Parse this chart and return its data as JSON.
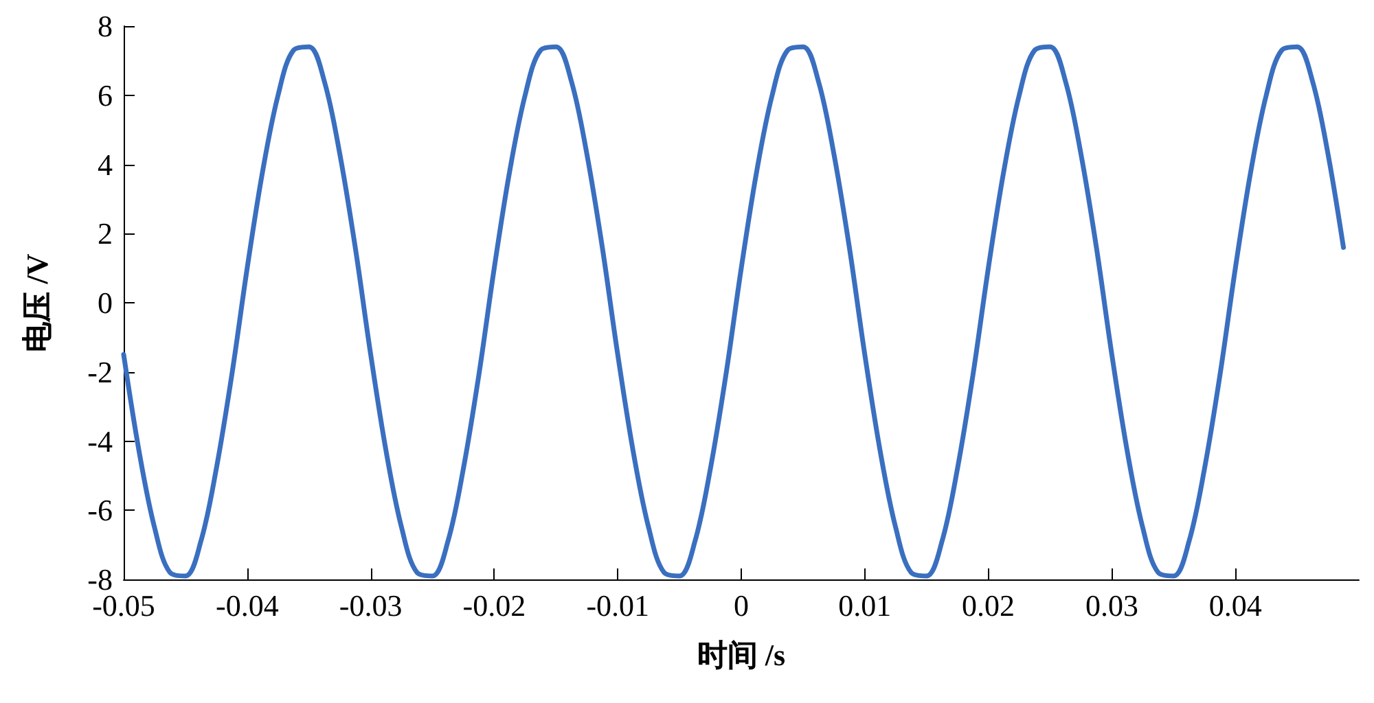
{
  "chart_data": {
    "type": "line",
    "xlabel": "时间 /s",
    "ylabel": "电压 /V",
    "xlim": [
      -0.05,
      0.05
    ],
    "xticks": [
      -0.05,
      -0.04,
      -0.03,
      -0.02,
      -0.01,
      0,
      0.01,
      0.02,
      0.03,
      0.04
    ],
    "ylim": [
      -8,
      8
    ],
    "yticks": [
      -8,
      -6,
      -4,
      -2,
      0,
      2,
      4,
      6,
      8
    ],
    "grid": false,
    "marker": "none",
    "line_style": "solid",
    "series": [
      {
        "color": "#3a6fc0",
        "x": [
          -0.05,
          -0.04875,
          -0.0475,
          -0.04625,
          -0.045,
          -0.04375,
          -0.0425,
          -0.04125,
          -0.04,
          -0.03875,
          -0.0375,
          -0.03625,
          -0.035,
          -0.03375,
          -0.0325,
          -0.03125,
          -0.03,
          -0.02875,
          -0.0275,
          -0.02625,
          -0.025,
          -0.02375,
          -0.0225,
          -0.02125,
          -0.02,
          -0.01875,
          -0.0175,
          -0.01625,
          -0.015,
          -0.01375,
          -0.0125,
          -0.01125,
          -0.01,
          -0.00875,
          -0.0075,
          -0.00625,
          -0.005,
          -0.00375,
          -0.0025,
          -0.00125,
          0,
          0.00125,
          0.0025,
          0.00375,
          0.005,
          0.00625,
          0.0075,
          0.00875,
          0.01,
          0.01125,
          0.0125,
          0.01375,
          0.015,
          0.01625,
          0.0175,
          0.01875,
          0.02,
          0.02125,
          0.0225,
          0.02375,
          0.025,
          0.02625,
          0.0275,
          0.02875,
          0.03,
          0.03125,
          0.0325,
          0.03375,
          0.035,
          0.03625,
          0.0375,
          0.03875,
          0.04,
          0.04125,
          0.0425,
          0.04375,
          0.045,
          0.04625,
          0.0475,
          0.04875
        ],
        "values": [
          -1.5,
          -4.3,
          -6.5,
          -7.8,
          -7.9,
          -6.9,
          -4.8,
          -2.1,
          1.0,
          3.8,
          6.0,
          7.3,
          7.4,
          6.4,
          4.3,
          1.6,
          -1.5,
          -4.3,
          -6.5,
          -7.8,
          -7.9,
          -6.9,
          -4.8,
          -2.1,
          1.0,
          3.8,
          6.0,
          7.3,
          7.4,
          6.4,
          4.3,
          1.6,
          -1.5,
          -4.3,
          -6.5,
          -7.8,
          -7.9,
          -6.9,
          -4.8,
          -2.1,
          1.0,
          3.8,
          6.0,
          7.3,
          7.4,
          6.4,
          4.3,
          1.6,
          -1.5,
          -4.3,
          -6.5,
          -7.8,
          -7.9,
          -6.9,
          -4.8,
          -2.1,
          1.0,
          3.8,
          6.0,
          7.3,
          7.4,
          6.4,
          4.3,
          1.6,
          -1.5,
          -4.3,
          -6.5,
          -7.8,
          -7.9,
          -6.9,
          -4.8,
          -2.1,
          1.0,
          3.8,
          6.0,
          7.3,
          7.4,
          6.4,
          4.3,
          1.6
        ]
      }
    ]
  }
}
